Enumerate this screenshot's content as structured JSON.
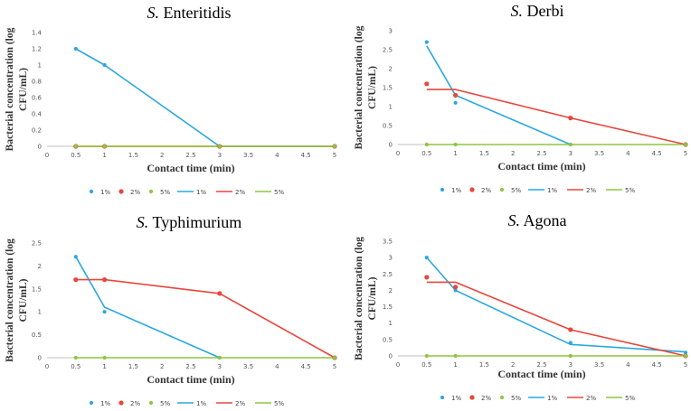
{
  "chart_data": [
    {
      "type": "line",
      "title_italic": "S.",
      "title_rest": "Enteritidis",
      "ylabel": "Bacterial concentration (log CFU/mL)",
      "ylabel_line1": "Bacterial concentration (log",
      "ylabel_line2": "CFU/mL)",
      "xlabel": "Contact time (min)",
      "xlim": [
        0,
        5
      ],
      "xticks": [
        "0",
        "0.5",
        "1",
        "1.5",
        "2",
        "2.5",
        "3",
        "3.5",
        "4",
        "4.5",
        "5"
      ],
      "ylim": [
        0,
        1.4
      ],
      "yticks": [
        "0",
        "0.2",
        "0.4",
        "0.6",
        "0.8",
        "1",
        "1.2",
        "1.4"
      ],
      "scatter": [
        {
          "name": "1%",
          "color": "#29A8E0",
          "x": [
            0.5,
            1,
            3,
            5
          ],
          "y": [
            1.2,
            1.0,
            0,
            0
          ]
        },
        {
          "name": "2%",
          "color": "#E8463C",
          "x": [
            0.5,
            1,
            3,
            5
          ],
          "y": [
            0,
            0,
            0,
            0
          ]
        },
        {
          "name": "5%",
          "color": "#8DC63F",
          "x": [
            0.5,
            1,
            3,
            5
          ],
          "y": [
            0,
            0,
            0,
            0
          ]
        }
      ],
      "lines": [
        {
          "name": "1%",
          "color": "#29A8E0",
          "x": [
            0.5,
            1,
            3,
            5
          ],
          "y": [
            1.2,
            1.0,
            0,
            0
          ]
        },
        {
          "name": "2%",
          "color": "#E8463C",
          "x": [
            0.5,
            1,
            3,
            5
          ],
          "y": [
            0,
            0,
            0,
            0
          ]
        },
        {
          "name": "5%",
          "color": "#8DC63F",
          "x": [
            0.5,
            1,
            3,
            5
          ],
          "y": [
            0,
            0,
            0,
            0
          ]
        }
      ]
    },
    {
      "type": "line",
      "title_italic": "S.",
      "title_rest": "Derbi",
      "ylabel": "Bacterial concentration (log CFU/mL)",
      "ylabel_line1": "Bacterial concentration (log",
      "ylabel_line2": "CFU/mL)",
      "xlabel": "Contact time (min)",
      "xlim": [
        0,
        5
      ],
      "xticks": [
        "0",
        "0.5",
        "1",
        "1.5",
        "2",
        "2.5",
        "3",
        "3.5",
        "4",
        "4.5",
        "5"
      ],
      "ylim": [
        0,
        3
      ],
      "yticks": [
        "0",
        "0.5",
        "1",
        "1.5",
        "2",
        "2.5",
        "3"
      ],
      "scatter": [
        {
          "name": "1%",
          "color": "#29A8E0",
          "x": [
            0.5,
            1,
            3,
            5
          ],
          "y": [
            2.7,
            1.1,
            0,
            0
          ]
        },
        {
          "name": "2%",
          "color": "#E8463C",
          "x": [
            0.5,
            1,
            3,
            5
          ],
          "y": [
            1.6,
            1.3,
            0.7,
            0
          ]
        },
        {
          "name": "5%",
          "color": "#8DC63F",
          "x": [
            0.5,
            1,
            3,
            5
          ],
          "y": [
            0,
            0,
            0,
            0
          ]
        }
      ],
      "lines": [
        {
          "name": "1%",
          "color": "#29A8E0",
          "x": [
            0.5,
            1,
            3
          ],
          "y": [
            2.6,
            1.3,
            0
          ]
        },
        {
          "name": "2%",
          "color": "#E8463C",
          "x": [
            0.5,
            1,
            3,
            5
          ],
          "y": [
            1.45,
            1.45,
            0.7,
            0
          ]
        },
        {
          "name": "5%",
          "color": "#8DC63F",
          "x": [
            0.5,
            5
          ],
          "y": [
            0,
            0
          ]
        }
      ]
    },
    {
      "type": "line",
      "title_italic": "S.",
      "title_rest": "Typhimurium",
      "ylabel": "Bacterial concentration (log CFU/mL)",
      "ylabel_line1": "Bacterial concentration (log",
      "ylabel_line2": "CFU/mL)",
      "xlabel": "Contact time (min)",
      "xlim": [
        0,
        5
      ],
      "xticks": [
        "0",
        "0.5",
        "1",
        "1.5",
        "2",
        "2.5",
        "3",
        "3.5",
        "4",
        "4.5",
        "5"
      ],
      "ylim": [
        0,
        2.5
      ],
      "yticks": [
        "0",
        "0.5",
        "1",
        "1.5",
        "2",
        "2.5"
      ],
      "scatter": [
        {
          "name": "1%",
          "color": "#29A8E0",
          "x": [
            0.5,
            1,
            3,
            5
          ],
          "y": [
            2.2,
            1.0,
            0,
            0
          ]
        },
        {
          "name": "2%",
          "color": "#E8463C",
          "x": [
            0.5,
            1,
            3,
            5
          ],
          "y": [
            1.7,
            1.7,
            1.4,
            0
          ]
        },
        {
          "name": "5%",
          "color": "#8DC63F",
          "x": [
            0.5,
            1,
            3,
            5
          ],
          "y": [
            0,
            0,
            0,
            0
          ]
        }
      ],
      "lines": [
        {
          "name": "1%",
          "color": "#29A8E0",
          "x": [
            0.5,
            1,
            3
          ],
          "y": [
            2.2,
            1.1,
            0
          ]
        },
        {
          "name": "2%",
          "color": "#E8463C",
          "x": [
            0.5,
            1,
            3,
            5
          ],
          "y": [
            1.7,
            1.7,
            1.4,
            0
          ]
        },
        {
          "name": "5%",
          "color": "#8DC63F",
          "x": [
            0.5,
            5
          ],
          "y": [
            0,
            0
          ]
        }
      ]
    },
    {
      "type": "line",
      "title_italic": "S.",
      "title_rest": "Agona",
      "ylabel": "Bacterial concentration (log CFU/mL)",
      "ylabel_line1": "Bacterial concentration (log",
      "ylabel_line2": "CFU/mL)",
      "xlabel": "Contact time (min)",
      "xlim": [
        0,
        5
      ],
      "xticks": [
        "0",
        "0.5",
        "1",
        "1.5",
        "2",
        "2.5",
        "3",
        "3.5",
        "4",
        "4.5",
        "5"
      ],
      "ylim": [
        0,
        3.5
      ],
      "yticks": [
        "0",
        "0.5",
        "1",
        "1.5",
        "2",
        "2.5",
        "3",
        "3.5"
      ],
      "scatter": [
        {
          "name": "1%",
          "color": "#29A8E0",
          "x": [
            0.5,
            1,
            3,
            5
          ],
          "y": [
            3.0,
            2.0,
            0.4,
            0.1
          ]
        },
        {
          "name": "2%",
          "color": "#E8463C",
          "x": [
            0.5,
            1,
            3,
            5
          ],
          "y": [
            2.4,
            2.1,
            0.8,
            0
          ]
        },
        {
          "name": "5%",
          "color": "#8DC63F",
          "x": [
            0.5,
            1,
            3,
            5
          ],
          "y": [
            0,
            0,
            0,
            0
          ]
        }
      ],
      "lines": [
        {
          "name": "1%",
          "color": "#29A8E0",
          "x": [
            0.5,
            1,
            3,
            5
          ],
          "y": [
            3.0,
            2.0,
            0.35,
            0.12
          ]
        },
        {
          "name": "2%",
          "color": "#E8463C",
          "x": [
            0.5,
            1,
            3,
            5
          ],
          "y": [
            2.25,
            2.25,
            0.8,
            0
          ]
        },
        {
          "name": "5%",
          "color": "#8DC63F",
          "x": [
            0.5,
            5
          ],
          "y": [
            0,
            0
          ]
        }
      ]
    }
  ]
}
